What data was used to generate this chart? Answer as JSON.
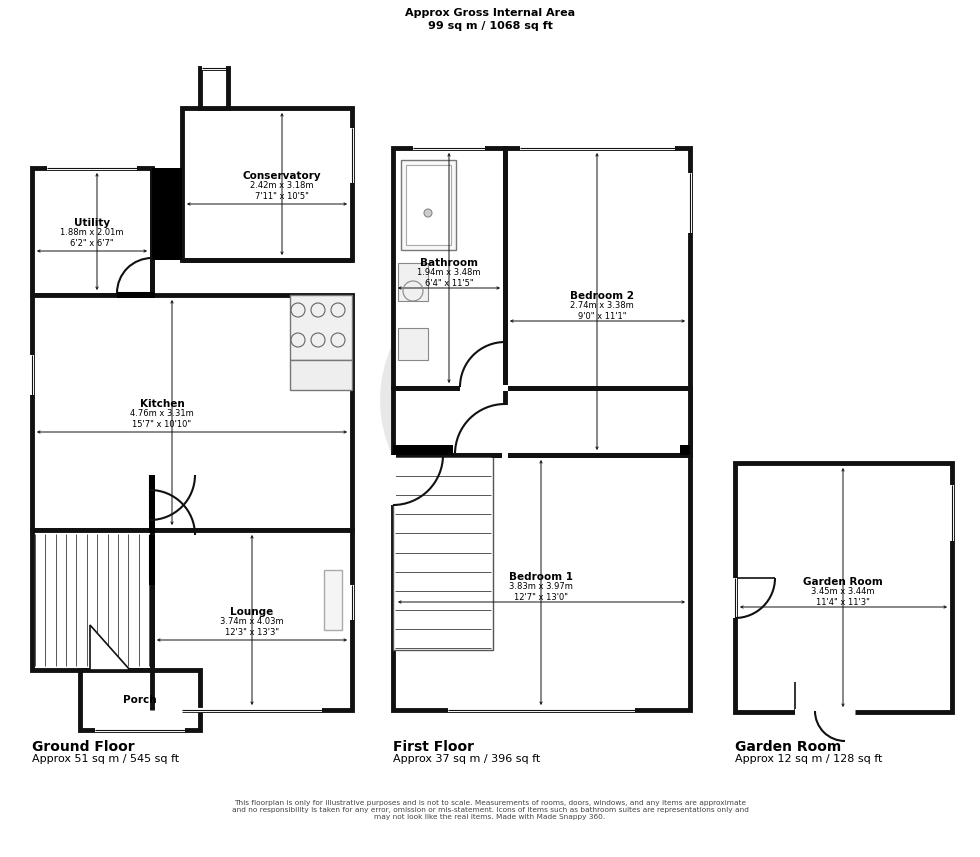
{
  "bg": "#ffffff",
  "wc": "#111111",
  "wlw": 3.5,
  "title1": "Approx Gross Internal Area",
  "title2": "99 sq m / 1068 sq ft",
  "disclaimer": "This floorplan is only for illustrative purposes and is not to scale. Measurements of rooms, doors, windows, and any items are approximate\nand no responsibility is taken for any error, omission or mis-statement. Icons of items such as bathroom suites are representations only and\nmay not look like the real items. Made with Made Snappy 360.",
  "gf_label": "Ground Floor",
  "gf_sub": "Approx 51 sq m / 545 sq ft",
  "ff_label": "First Floor",
  "ff_sub": "Approx 37 sq m / 396 sq ft",
  "gr_label": "Garden Room",
  "gr_sub": "Approx 12 sq m / 128 sq ft",
  "utility_name": "Utility",
  "utility_dim": "1.88m x 2.01m\n6'2\" x 6'7\"",
  "conservatory_name": "Conservatory",
  "conservatory_dim": "2.42m x 3.18m\n7'11\" x 10'5\"",
  "kitchen_name": "Kitchen",
  "kitchen_dim": "4.76m x 3.31m\n15'7\" x 10'10\"",
  "lounge_name": "Lounge",
  "lounge_dim": "3.74m x 4.03m\n12'3\" x 13'3\"",
  "porch_name": "Porch",
  "bathroom_name": "Bathroom",
  "bathroom_dim": "1.94m x 3.48m\n6'4\" x 11'5\"",
  "bed1_name": "Bedroom 1",
  "bed1_dim": "3.83m x 3.97m\n12'7\" x 13'0\"",
  "bed2_name": "Bedroom 2",
  "bed2_dim": "2.74m x 3.38m\n9'0\" x 11'1\"",
  "gr_name": "Garden Room",
  "gr_dim": "3.45m x 3.44m\n11'4\" x 11'3\""
}
